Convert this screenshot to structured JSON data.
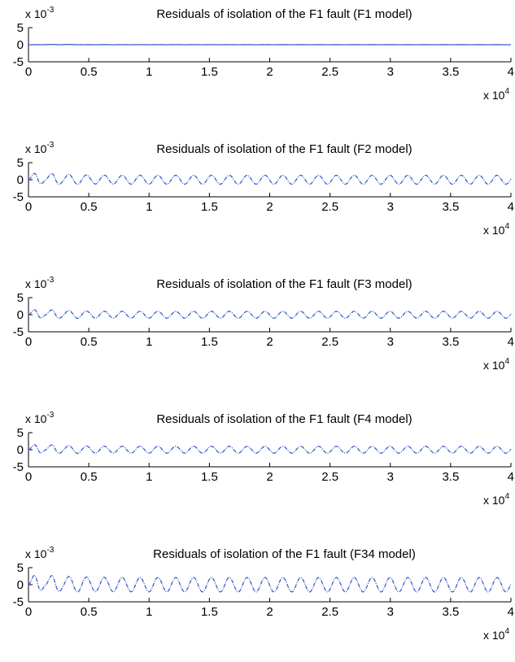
{
  "chart_data": [
    {
      "type": "line",
      "title": "Residuals of isolation of the F1 fault (F1 model)",
      "xlim": [
        0,
        40000
      ],
      "ylim": [
        -0.005,
        0.005
      ],
      "x_ticks": [
        "0",
        "0.5",
        "1",
        "1.5",
        "2",
        "2.5",
        "3",
        "3.5",
        "4"
      ],
      "y_ticks": [
        "5",
        "0",
        "-5"
      ],
      "x_scale_label": "x 10",
      "x_scale_exp": "4",
      "y_scale_label": "x 10",
      "y_scale_exp": "-3",
      "series": [
        {
          "color": "#3a5fcd",
          "style": "dash-dot",
          "x": [
            0,
            2000,
            4000,
            4500,
            6000,
            8000,
            10000,
            15000,
            20000,
            25000,
            30000,
            35000,
            40000
          ],
          "y": [
            0,
            0.0001,
            0.0001,
            0,
            5e-05,
            3e-05,
            3e-05,
            3e-05,
            2e-05,
            2e-05,
            2e-05,
            2e-05,
            2e-05
          ]
        }
      ]
    },
    {
      "type": "line",
      "title": "Residuals of isolation of the F1 fault (F2 model)",
      "xlim": [
        0,
        40000
      ],
      "ylim": [
        -0.005,
        0.005
      ],
      "x_ticks": [
        "0",
        "0.5",
        "1",
        "1.5",
        "2",
        "2.5",
        "3",
        "3.5",
        "4"
      ],
      "y_ticks": [
        "5",
        "0",
        "-5"
      ],
      "x_scale_label": "x 10",
      "x_scale_exp": "4",
      "y_scale_label": "x 10",
      "y_scale_exp": "-3",
      "series": [
        {
          "color": "#3a5fcd",
          "style": "dash-dot",
          "x": [
            0,
            700,
            1400,
            2100,
            2800,
            3500,
            5000,
            10000,
            15000,
            20000,
            25000,
            30000,
            35000,
            40000
          ],
          "y": [
            0,
            0.0024,
            -0.0005,
            0.0021,
            -0.0012,
            0.0015,
            0.0013,
            0.0013,
            0.0013,
            0.0013,
            0.0013,
            0.0013,
            0.0013,
            0.0013
          ]
        }
      ]
    },
    {
      "type": "line",
      "title": "Residuals of isolation of the F1 fault (F3 model)",
      "xlim": [
        0,
        40000
      ],
      "ylim": [
        -0.005,
        0.005
      ],
      "x_ticks": [
        "0",
        "0.5",
        "1",
        "1.5",
        "2",
        "2.5",
        "3",
        "3.5",
        "4"
      ],
      "y_ticks": [
        "5",
        "0",
        "-5"
      ],
      "x_scale_label": "x 10",
      "x_scale_exp": "4",
      "y_scale_label": "x 10",
      "y_scale_exp": "-3",
      "series": [
        {
          "color": "#3a5fcd",
          "style": "dash-dot",
          "x": [
            0,
            700,
            1400,
            2100,
            2800,
            3500,
            5000,
            10000,
            15000,
            20000,
            25000,
            30000,
            35000,
            40000
          ],
          "y": [
            0,
            0.0019,
            -0.0004,
            0.0016,
            -0.0009,
            0.0012,
            0.001,
            0.001,
            0.001,
            0.001,
            0.001,
            0.001,
            0.001,
            0.001
          ]
        }
      ]
    },
    {
      "type": "line",
      "title": "Residuals of isolation of the F1 fault (F4 model)",
      "xlim": [
        0,
        40000
      ],
      "ylim": [
        -0.005,
        0.005
      ],
      "x_ticks": [
        "0",
        "0.5",
        "1",
        "1.5",
        "2",
        "2.5",
        "3",
        "3.5",
        "4"
      ],
      "y_ticks": [
        "5",
        "0",
        "-5"
      ],
      "x_scale_label": "x 10",
      "x_scale_exp": "4",
      "y_scale_label": "x 10",
      "y_scale_exp": "-3",
      "series": [
        {
          "color": "#3a5fcd",
          "style": "dash-dot",
          "x": [
            0,
            700,
            1400,
            2100,
            2800,
            3500,
            5000,
            10000,
            15000,
            20000,
            25000,
            30000,
            35000,
            40000
          ],
          "y": [
            0,
            0.0019,
            -0.0004,
            0.0016,
            -0.0009,
            0.0012,
            0.001,
            0.001,
            0.001,
            0.001,
            0.001,
            0.001,
            0.001,
            0.001
          ]
        }
      ]
    },
    {
      "type": "line",
      "title": "Residuals of isolation of the F1 fault (F34 model)",
      "xlim": [
        0,
        40000
      ],
      "ylim": [
        -0.005,
        0.005
      ],
      "x_ticks": [
        "0",
        "0.5",
        "1",
        "1.5",
        "2",
        "2.5",
        "3",
        "3.5",
        "4"
      ],
      "y_ticks": [
        "5",
        "0",
        "-5"
      ],
      "x_scale_label": "x 10",
      "x_scale_exp": "4",
      "y_scale_label": "x 10",
      "y_scale_exp": "-3",
      "series": [
        {
          "color": "#3a5fcd",
          "style": "dash-dot",
          "x": [
            0,
            700,
            1400,
            2100,
            2800,
            3500,
            5000,
            10000,
            15000,
            20000,
            25000,
            30000,
            35000,
            40000
          ],
          "y": [
            0,
            0.0036,
            -0.0006,
            0.0031,
            -0.0017,
            0.0024,
            0.0021,
            0.0021,
            0.0021,
            0.0021,
            0.0021,
            0.0021,
            0.0021,
            0.0021
          ]
        }
      ]
    }
  ]
}
